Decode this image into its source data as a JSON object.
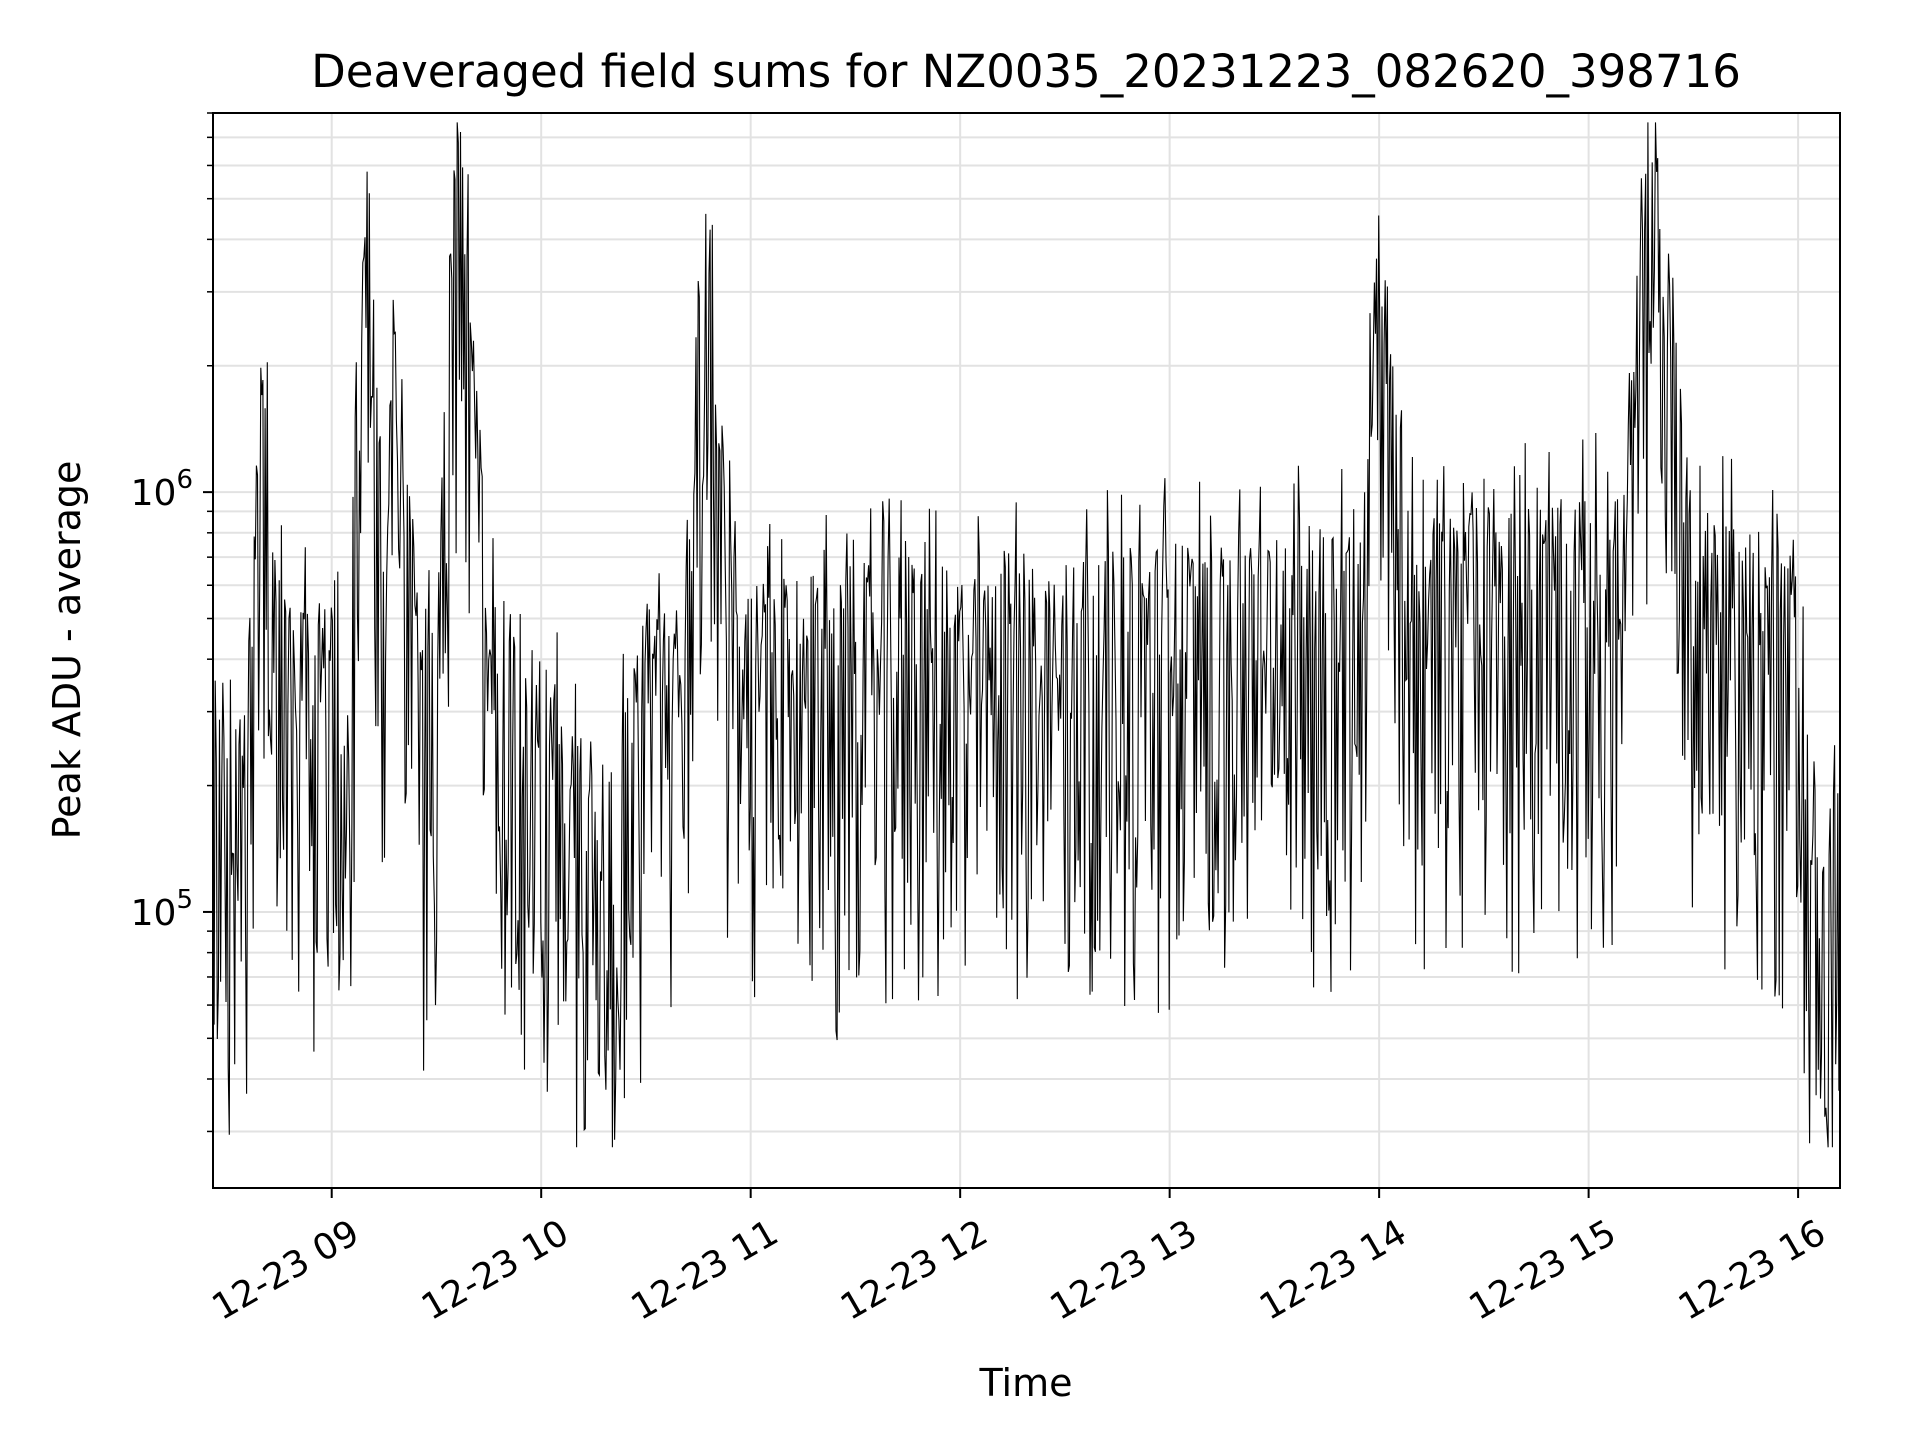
{
  "chart_data": {
    "type": "line",
    "title": "Deaveraged field sums for NZ0035_20231223_082620_398716",
    "xlabel": "Time",
    "ylabel": "Peak ADU - average",
    "x_axis": {
      "kind": "date",
      "range": [
        "2023-12-23 08:26",
        "2023-12-23 16:12"
      ],
      "tick_values": [
        "2023-12-23 09:00",
        "2023-12-23 10:00",
        "2023-12-23 11:00",
        "2023-12-23 12:00",
        "2023-12-23 13:00",
        "2023-12-23 14:00",
        "2023-12-23 15:00",
        "2023-12-23 16:00"
      ],
      "tick_labels": [
        "12-23 09",
        "12-23 10",
        "12-23 11",
        "12-23 12",
        "12-23 13",
        "12-23 14",
        "12-23 15",
        "12-23 16"
      ]
    },
    "y_axis": {
      "scale": "log",
      "ylim": [
        22000,
        8000000
      ],
      "tick_labels": [
        {
          "value": 100000,
          "base": "10",
          "exp": "5"
        },
        {
          "value": 1000000,
          "base": "10",
          "exp": "6"
        }
      ]
    },
    "grid": true,
    "line_color": "#000000",
    "series": [
      {
        "name": "",
        "points": [
          [
            "2023-12-23 08:26",
            170000
          ],
          [
            "2023-12-23 08:30",
            210000
          ],
          [
            "2023-12-23 08:32",
            130000
          ],
          [
            "2023-12-23 08:35",
            250000
          ],
          [
            "2023-12-23 08:38",
            600000
          ],
          [
            "2023-12-23 08:40",
            1850000
          ],
          [
            "2023-12-23 08:44",
            500000
          ],
          [
            "2023-12-23 08:50",
            420000
          ],
          [
            "2023-12-23 08:55",
            300000
          ],
          [
            "2023-12-23 09:00",
            350000
          ],
          [
            "2023-12-23 09:05",
            380000
          ],
          [
            "2023-12-23 09:10",
            5800000
          ],
          [
            "2023-12-23 09:15",
            400000
          ],
          [
            "2023-12-23 09:18",
            2400000
          ],
          [
            "2023-12-23 09:25",
            330000
          ],
          [
            "2023-12-23 09:30",
            360000
          ],
          [
            "2023-12-23 09:36",
            6800000
          ],
          [
            "2023-12-23 09:45",
            400000
          ],
          [
            "2023-12-23 09:55",
            300000
          ],
          [
            "2023-12-23 10:00",
            250000
          ],
          [
            "2023-12-23 10:10",
            200000
          ],
          [
            "2023-12-23 10:20",
            150000
          ],
          [
            "2023-12-23 10:30",
            350000
          ],
          [
            "2023-12-23 10:40",
            300000
          ],
          [
            "2023-12-23 10:47",
            4600000
          ],
          [
            "2023-12-23 10:55",
            400000
          ],
          [
            "2023-12-23 11:10",
            380000
          ],
          [
            "2023-12-23 11:30",
            420000
          ],
          [
            "2023-12-23 11:45",
            450000
          ],
          [
            "2023-12-23 12:00",
            400000
          ],
          [
            "2023-12-23 12:20",
            430000
          ],
          [
            "2023-12-23 12:40",
            450000
          ],
          [
            "2023-12-23 13:00",
            480000
          ],
          [
            "2023-12-23 13:20",
            470000
          ],
          [
            "2023-12-23 13:40",
            520000
          ],
          [
            "2023-12-23 13:55",
            560000
          ],
          [
            "2023-12-23 13:59",
            3600000
          ],
          [
            "2023-12-23 14:10",
            550000
          ],
          [
            "2023-12-23 14:30",
            580000
          ],
          [
            "2023-12-23 14:50",
            600000
          ],
          [
            "2023-12-23 15:10",
            620000
          ],
          [
            "2023-12-23 15:18",
            6100000
          ],
          [
            "2023-12-23 15:30",
            600000
          ],
          [
            "2023-12-23 15:50",
            500000
          ],
          [
            "2023-12-23 16:00",
            450000
          ],
          [
            "2023-12-23 16:04",
            120000
          ],
          [
            "2023-12-23 16:08",
            100000
          ],
          [
            "2023-12-23 16:12",
            150000
          ]
        ]
      }
    ]
  }
}
